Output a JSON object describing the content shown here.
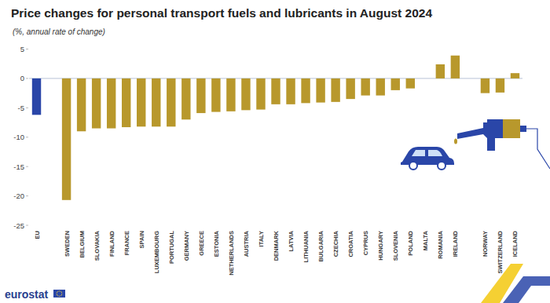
{
  "chart_data": {
    "type": "bar",
    "title": "Price changes for personal transport fuels and lubricants in August 2024",
    "subtitle": "(%, annual rate of change)",
    "annotations": [
      "eurostat"
    ],
    "categories": [
      "EU",
      null,
      "SWEDEN",
      "BELGIUM",
      "SLOVAKIA",
      "FINLAND",
      "FRANCE",
      "SPAIN",
      "LUXEMBOURG",
      "PORTUGAL",
      "GERMANY",
      "GREECE",
      "ESTONIA",
      "NETHERLANDS",
      "AUSTRIA",
      "ITALY",
      "DENMARK",
      "LATVIA",
      "LITHUANIA",
      "BULGARIA",
      "CZECHIA",
      "CROATIA",
      "CYPRUS",
      "HUNGARY",
      "SLOVENIA",
      "POLAND",
      "MALTA",
      "ROMANIA",
      "IRELAND",
      null,
      "NORWAY",
      "SWITZERLAND",
      "ICELAND"
    ],
    "values": [
      -6.2,
      null,
      -20.7,
      -9.0,
      -8.5,
      -8.5,
      -8.3,
      -8.2,
      -8.2,
      -8.2,
      -7.0,
      -5.9,
      -5.7,
      -5.6,
      -5.4,
      -5.3,
      -4.4,
      -4.4,
      -4.2,
      -4.1,
      -4.0,
      -3.5,
      -2.9,
      -2.9,
      -2.0,
      -1.7,
      0,
      2.4,
      3.9,
      null,
      -2.5,
      -2.4,
      0.9
    ],
    "colors": [
      "#2a46a8",
      null,
      "#b8982c",
      "#b8982c",
      "#b8982c",
      "#b8982c",
      "#b8982c",
      "#b8982c",
      "#b8982c",
      "#b8982c",
      "#b8982c",
      "#b8982c",
      "#b8982c",
      "#b8982c",
      "#b8982c",
      "#b8982c",
      "#b8982c",
      "#b8982c",
      "#b8982c",
      "#b8982c",
      "#b8982c",
      "#b8982c",
      "#b8982c",
      "#b8982c",
      "#b8982c",
      "#b8982c",
      "#b8982c",
      "#b8982c",
      "#b8982c",
      null,
      "#b8982c",
      "#b8982c",
      "#b8982c"
    ],
    "ylim": [
      -25,
      5
    ],
    "yticks": [
      -25,
      -20,
      -15,
      -10,
      -5,
      0,
      5
    ],
    "grid": false
  }
}
